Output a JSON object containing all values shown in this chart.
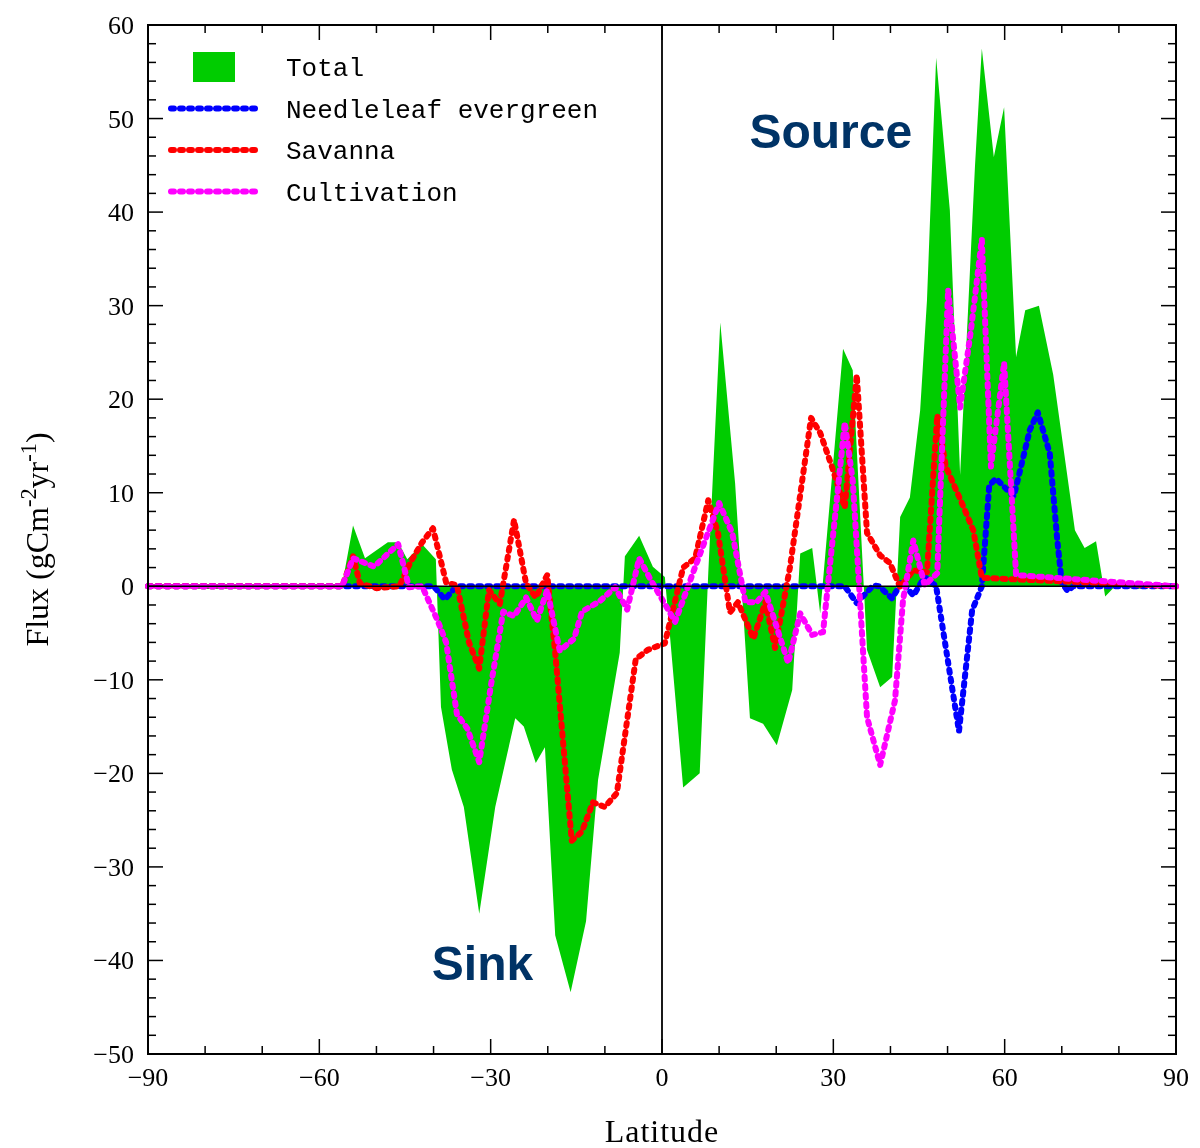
{
  "chart_data": {
    "type": "line",
    "xlabel": "Latitude",
    "ylabel": "Flux (gCm$^{-2}$yr$^{-1}$)",
    "xlim": [
      -90,
      90
    ],
    "ylim": [
      -50,
      60
    ],
    "xticks": [
      {
        "value": -90,
        "label": "−90"
      },
      {
        "value": -80,
        "label": null
      },
      {
        "value": -70,
        "label": null
      },
      {
        "value": -60,
        "label": "−60"
      },
      {
        "value": -50,
        "label": null
      },
      {
        "value": -40,
        "label": null
      },
      {
        "value": -30,
        "label": "−30"
      },
      {
        "value": -20,
        "label": null
      },
      {
        "value": -10,
        "label": null
      },
      0,
      {
        "value": 10,
        "label": null
      },
      {
        "value": 20,
        "label": null
      },
      30,
      {
        "value": 40,
        "label": null
      },
      {
        "value": 50,
        "label": null
      },
      60,
      {
        "value": 70,
        "label": null
      },
      {
        "value": 80,
        "label": null
      },
      90
    ],
    "yticks": [
      {
        "value": -50,
        "label": "−50"
      },
      {
        "value": -40,
        "label": "−40"
      },
      {
        "value": -30,
        "label": "−30"
      },
      {
        "value": -20,
        "label": "−20"
      },
      {
        "value": -10,
        "label": "−10"
      },
      0,
      10,
      20,
      30,
      40,
      50,
      60
    ],
    "legend": "top left",
    "line_style": "dashed",
    "ref_lines": [
      {
        "axis": "x",
        "value": 0,
        "color": "#000000"
      }
    ],
    "annotations": [
      "Source",
      "Sink"
    ],
    "series": [
      {
        "name": "Total",
        "type": "area",
        "color": "#00cc00",
        "x": [
          -90,
          -80,
          -70,
          -60,
          -56,
          -54.1,
          -52,
          -48,
          -46.2,
          -44.6,
          -42,
          -39.6,
          -38.7,
          -36.8,
          -34.7,
          -32,
          -29.2,
          -25.7,
          -24.2,
          -22.1,
          -20.5,
          -18.7,
          -16,
          -13.3,
          -11.2,
          -7.4,
          -6.5,
          -4,
          -1.6,
          0.5,
          3.7,
          6.6,
          8.1,
          10.2,
          12.8,
          15.4,
          17.7,
          20.1,
          22.8,
          24.2,
          26.3,
          27.7,
          31.7,
          33.4,
          35.9,
          38.2,
          40.3,
          41.7,
          43.4,
          45.2,
          46.4,
          48,
          50.4,
          52.2,
          54.8,
          56,
          58.1,
          59.9,
          62,
          63.6,
          66,
          68.5,
          72.3,
          74,
          76,
          77.6,
          79.5,
          82.7,
          90
        ],
        "values": [
          0,
          -0.3,
          -0.2,
          0.2,
          0.2,
          6.5,
          3,
          4.7,
          4.7,
          2.9,
          4.5,
          2.9,
          -12.9,
          -19.6,
          -23.6,
          -35,
          -23.6,
          -14.1,
          -15,
          -18.9,
          -17.2,
          -37.3,
          -43.4,
          -35.8,
          -20.7,
          -7.1,
          3.2,
          5.4,
          2.1,
          1,
          -21.5,
          -20,
          1.4,
          28.2,
          11,
          -14.1,
          -14.7,
          -17,
          -11.1,
          3.5,
          4.1,
          -2.9,
          25.4,
          23.1,
          -6.8,
          -10.8,
          -9.7,
          7.4,
          9.5,
          18.8,
          30.6,
          56.5,
          40.2,
          11.9,
          44.9,
          57.5,
          45.9,
          51.2,
          24.5,
          29.5,
          30,
          22.6,
          6,
          4.1,
          4.8,
          -1.1,
          0.1,
          -0.3,
          0
        ]
      },
      {
        "name": "Needleleaf evergreen",
        "type": "line",
        "color": "#0000ff",
        "x": [
          -90,
          -40,
          -38,
          -36,
          32,
          34.1,
          37,
          38,
          40.3,
          42,
          44,
          46,
          48,
          52,
          54.3,
          56,
          57.3,
          58.5,
          61.6,
          64.4,
          65.8,
          67.9,
          69.2,
          70,
          71,
          72,
          90
        ],
        "values": [
          0,
          0,
          -1.4,
          0,
          0,
          -1.8,
          0.1,
          0,
          -1.3,
          0.5,
          -1,
          1,
          0,
          -15.5,
          -2.6,
          0,
          10.8,
          11.5,
          9.6,
          16.7,
          18.6,
          14.2,
          5,
          0.4,
          -0.5,
          0,
          0
        ]
      },
      {
        "name": "Savanna",
        "type": "line",
        "color": "#ff0000",
        "x": [
          -90,
          -56,
          -54.1,
          -52.9,
          -50,
          -46,
          -44.1,
          -42,
          -40.1,
          -37.8,
          -35.9,
          -33.8,
          -32,
          -30.3,
          -28.4,
          -25.9,
          -23.8,
          -22.1,
          -20.1,
          -18.7,
          -15.8,
          -14,
          -12.1,
          -10,
          -7.9,
          -4.6,
          -2.5,
          0.5,
          3.7,
          5.8,
          8.1,
          9.8,
          11.9,
          13.3,
          16,
          18.1,
          19.8,
          22.4,
          26.1,
          27.7,
          29.8,
          32,
          34.1,
          35.9,
          38.2,
          39.9,
          41.7,
          44,
          46.4,
          48.2,
          49.7,
          52.5,
          54.5,
          56,
          90
        ],
        "values": [
          0,
          0,
          3.2,
          0.3,
          -0.2,
          0,
          2.5,
          4.7,
          6.2,
          0.4,
          0.1,
          -6,
          -8.8,
          -0.4,
          -1.9,
          7.1,
          0.3,
          -1.2,
          1.2,
          -7.1,
          -27.2,
          -26.2,
          -23.1,
          -23.6,
          -22.1,
          -7.8,
          -6.8,
          -6.1,
          2,
          3,
          9.2,
          5.7,
          -2.8,
          -1.7,
          -5.6,
          -1.7,
          -6.6,
          2,
          18,
          16.4,
          12.7,
          8.4,
          22.6,
          5.7,
          3.3,
          2.5,
          -0.1,
          1.7,
          1.5,
          18.3,
          12.8,
          8.9,
          6,
          0.9,
          0
        ]
      },
      {
        "name": "Cultivation",
        "type": "line",
        "color": "#ff00ff",
        "x": [
          -90,
          -56,
          -54.1,
          -50.4,
          -46.2,
          -44.3,
          -42,
          -39.2,
          -37.8,
          -35.9,
          -34.1,
          -32,
          -29.9,
          -27.8,
          -25.9,
          -23.8,
          -21.9,
          -20.1,
          -17.9,
          -15.4,
          -14,
          -10.9,
          -8.2,
          -6.1,
          -4,
          -1.9,
          0.5,
          2.3,
          5.4,
          10,
          12.3,
          14.6,
          16.6,
          18.1,
          22.1,
          24.2,
          26.3,
          28.2,
          32,
          33.4,
          35.9,
          38.2,
          40.8,
          42.2,
          44,
          46,
          48.2,
          50.1,
          52.2,
          54.1,
          56,
          57.6,
          59.9,
          62,
          90
        ],
        "values": [
          0,
          0,
          3,
          2.1,
          4.5,
          -0.1,
          0,
          -3.8,
          -6,
          -13.7,
          -15.2,
          -18.8,
          -10.4,
          -2.7,
          -3.2,
          -1.2,
          -3.7,
          -0.4,
          -6.9,
          -5.6,
          -2.7,
          -1.6,
          -0.1,
          -2.5,
          3,
          0.6,
          -1.9,
          -3.8,
          1.4,
          8.9,
          5.7,
          -1.7,
          -1.7,
          -0.6,
          -8.2,
          -2.9,
          -5.2,
          -4.9,
          17.5,
          11.3,
          -14,
          -19.1,
          -12.2,
          -1.5,
          4.9,
          0.1,
          1.4,
          31.7,
          19.1,
          27.4,
          37.1,
          12.8,
          23.9,
          1.2,
          0
        ]
      }
    ]
  }
}
